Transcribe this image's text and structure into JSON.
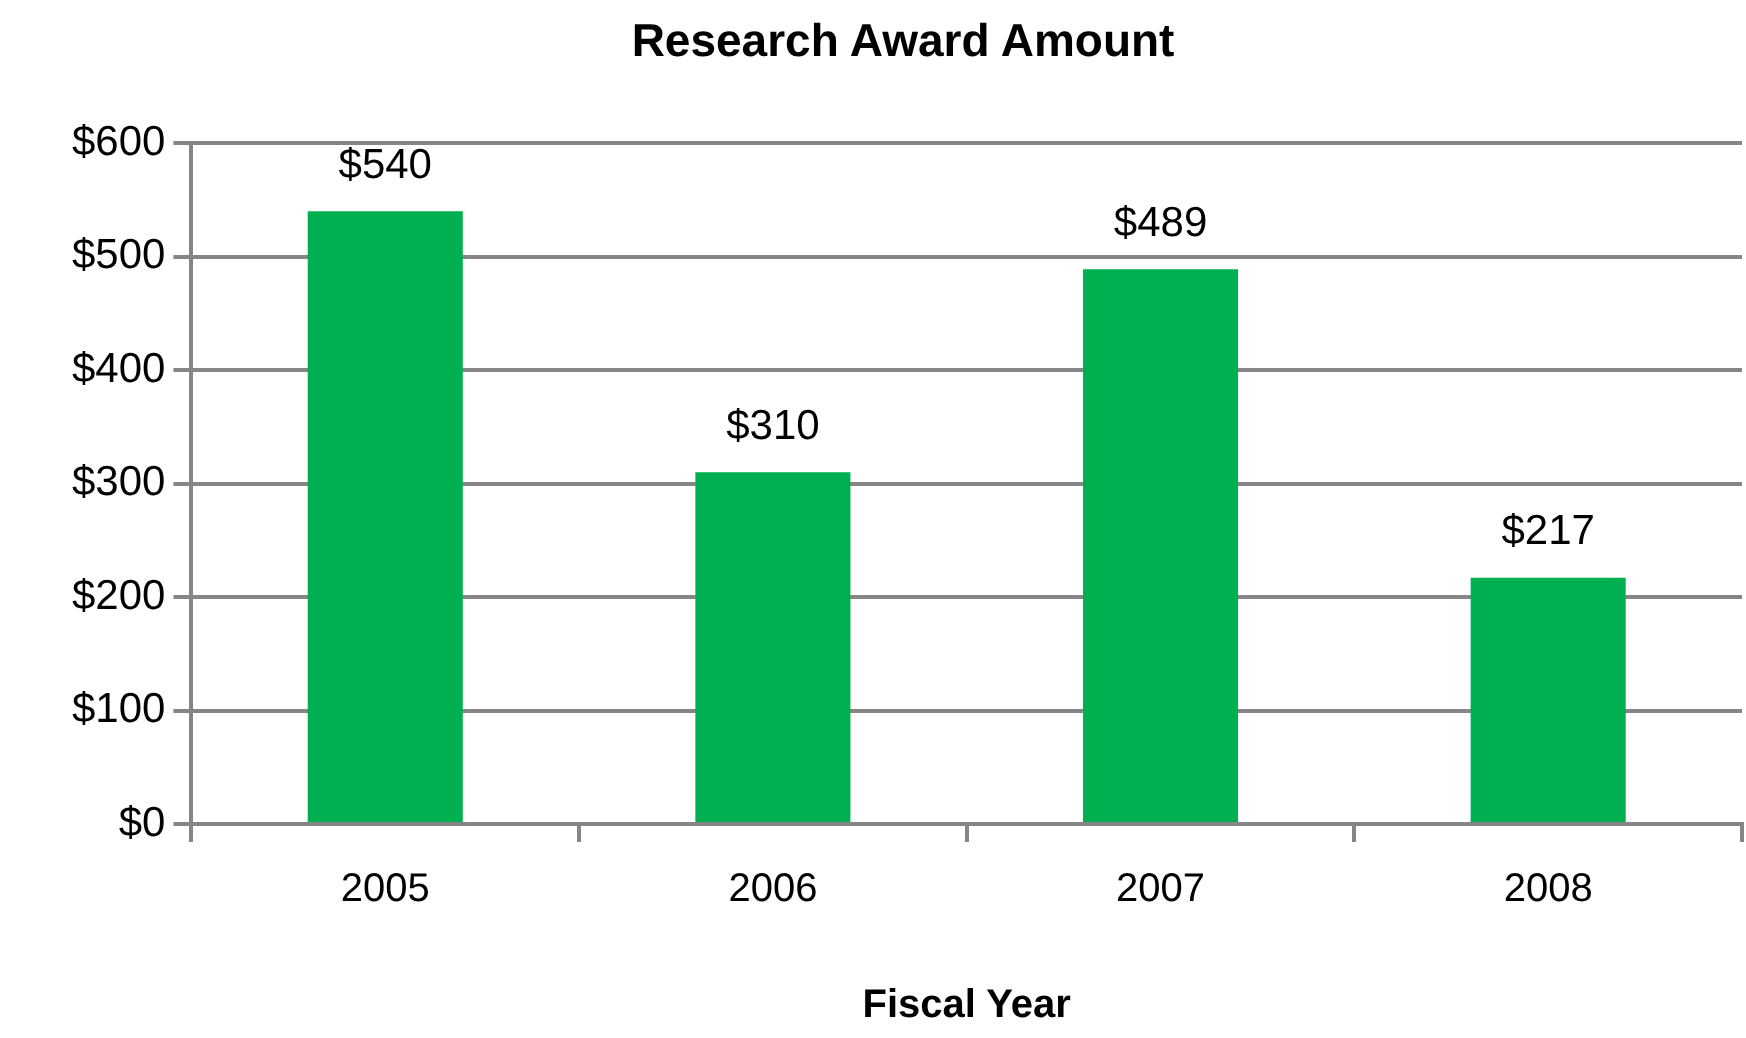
{
  "chart_data": {
    "type": "bar",
    "title": "Research Award Amount",
    "xlabel": "Fiscal Year",
    "categories": [
      "2005",
      "2006",
      "2007",
      "2008"
    ],
    "values": [
      540,
      310,
      489,
      217
    ],
    "value_labels": [
      "$540",
      "$310",
      "$489",
      "$217"
    ],
    "color": "#00b050",
    "ylim": [
      0,
      600
    ],
    "yticks": [
      {
        "value": 0,
        "label": "$0"
      },
      {
        "value": 100,
        "label": "$100"
      },
      {
        "value": 200,
        "label": "$200"
      },
      {
        "value": 300,
        "label": "$300"
      },
      {
        "value": 400,
        "label": "$400"
      },
      {
        "value": 500,
        "label": "$500"
      },
      {
        "value": 600,
        "label": "$600"
      }
    ],
    "grid": "y"
  }
}
